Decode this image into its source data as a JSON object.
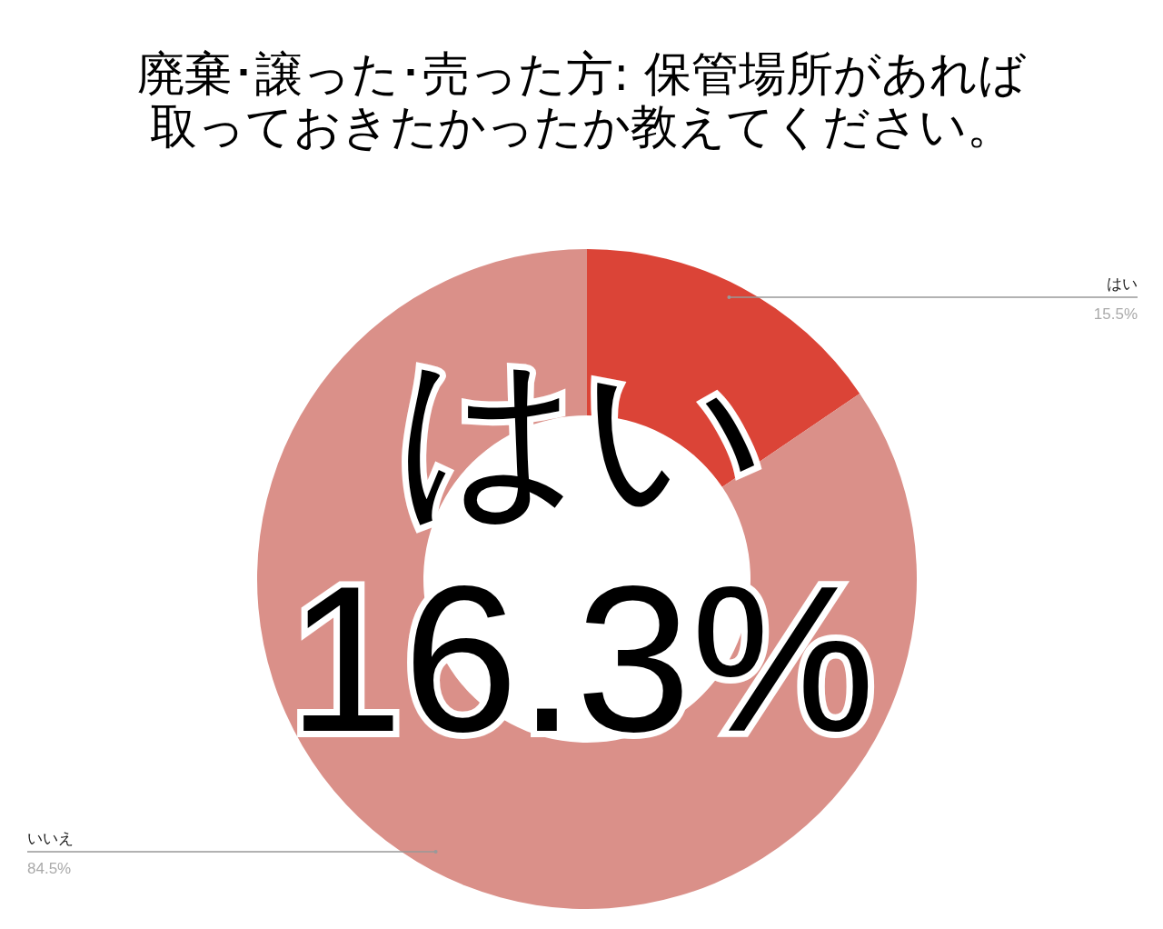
{
  "chart_data": {
    "type": "donut",
    "title": "廃棄･譲った･売った方: 保管場所があれば取っておきたかったか教えてください。",
    "categories": [
      "はい",
      "いいえ"
    ],
    "values": [
      15.5,
      84.5
    ],
    "colors": [
      "#db4437",
      "#da9089"
    ],
    "value_labels": [
      "15.5%",
      "84.5%"
    ],
    "annotations": [
      "はい",
      "16.3%"
    ]
  }
}
